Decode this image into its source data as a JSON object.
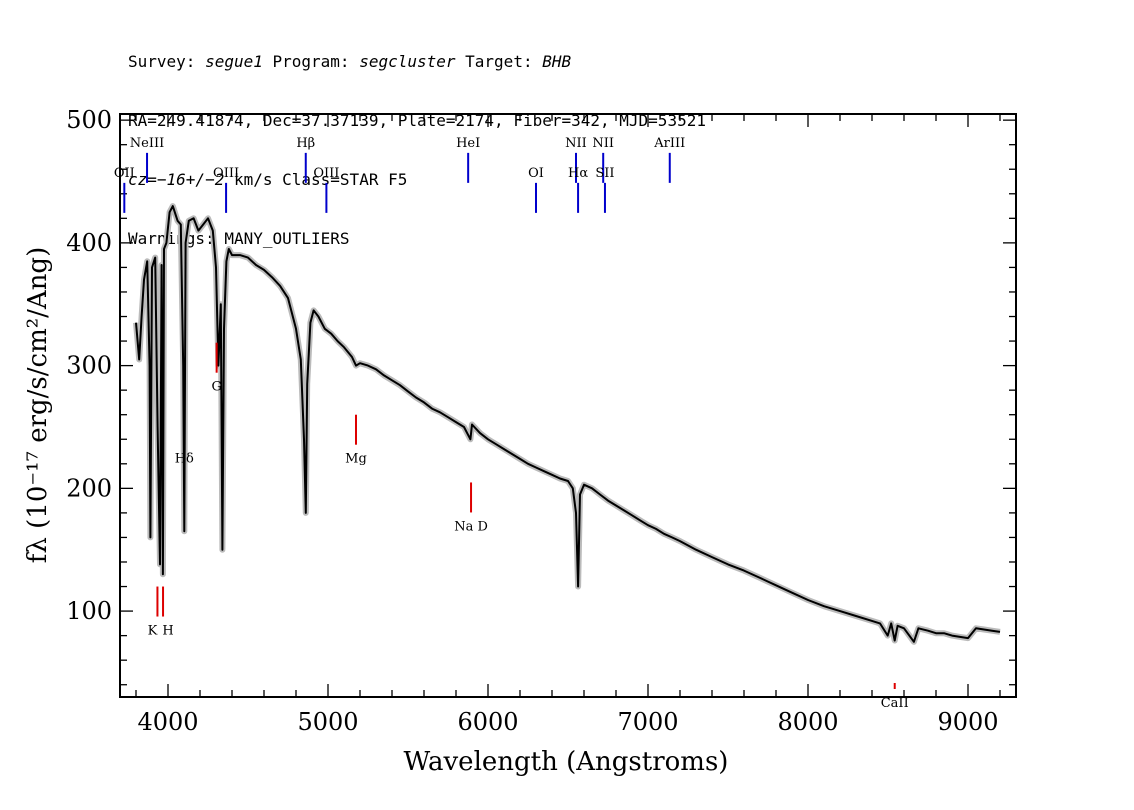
{
  "header": {
    "line1": {
      "survey_label": "Survey: ",
      "survey": "segue1",
      "program_label": " Program: ",
      "program": "segcluster",
      "target_label": " Target: ",
      "target": "BHB"
    },
    "line2": "RA=249.41874, Dec=37.37139, Plate=2174, Fiber=342, MJD=53521",
    "line3": {
      "cz": "cz=−16+/−2",
      "rest": " km/s Class=STAR F5"
    },
    "line4": "Warnings: MANY_OUTLIERS"
  },
  "chart_data": {
    "type": "line",
    "xlabel": "Wavelength (Angstroms)",
    "ylabel": "fλ (10⁻¹⁷ erg/s/cm²/Ang)",
    "xlim": [
      3700,
      9300
    ],
    "ylim": [
      30,
      505
    ],
    "x_ticks": [
      4000,
      5000,
      6000,
      7000,
      8000,
      9000
    ],
    "y_ticks": [
      100,
      200,
      300,
      400,
      500
    ],
    "colors": {
      "spectrum": "#000000",
      "error_band": "#bbbbbb",
      "emission": "#0000cc",
      "absorption": "#dd0000"
    },
    "series": [
      {
        "x": [
          3800,
          3820,
          3835,
          3850,
          3870,
          3885,
          3890,
          3900,
          3920,
          3935,
          3950,
          3960,
          3968,
          3975,
          3990,
          4010,
          4030,
          4060,
          4080,
          4095,
          4102,
          4110,
          4130,
          4160,
          4190,
          4220,
          4250,
          4280,
          4300,
          4315,
          4330,
          4340,
          4350,
          4365,
          4380,
          4400,
          4450,
          4500,
          4550,
          4600,
          4650,
          4700,
          4750,
          4800,
          4830,
          4850,
          4861,
          4870,
          4890,
          4910,
          4940,
          4980,
          5020,
          5060,
          5100,
          5150,
          5175,
          5200,
          5250,
          5300,
          5350,
          5400,
          5450,
          5500,
          5550,
          5600,
          5650,
          5700,
          5750,
          5800,
          5850,
          5890,
          5900,
          5950,
          6000,
          6050,
          6100,
          6150,
          6200,
          6250,
          6300,
          6350,
          6400,
          6450,
          6500,
          6530,
          6550,
          6563,
          6575,
          6600,
          6650,
          6700,
          6750,
          6800,
          6850,
          6900,
          6950,
          7000,
          7050,
          7100,
          7150,
          7200,
          7300,
          7400,
          7500,
          7600,
          7700,
          7750,
          7800,
          7900,
          8000,
          8100,
          8200,
          8300,
          8400,
          8450,
          8498,
          8520,
          8542,
          8560,
          8600,
          8662,
          8690,
          8750,
          8800,
          8850,
          8900,
          8950,
          9000,
          9050,
          9100,
          9150,
          9200
        ],
        "y": [
          335,
          305,
          340,
          370,
          385,
          300,
          160,
          380,
          388,
          250,
          138,
          382,
          130,
          395,
          400,
          425,
          430,
          418,
          415,
          300,
          165,
          400,
          418,
          420,
          410,
          415,
          420,
          410,
          380,
          300,
          350,
          150,
          330,
          385,
          395,
          390,
          390,
          388,
          382,
          378,
          372,
          365,
          355,
          330,
          305,
          240,
          180,
          285,
          335,
          345,
          340,
          330,
          326,
          320,
          315,
          307,
          300,
          302,
          300,
          297,
          292,
          288,
          284,
          279,
          274,
          270,
          265,
          262,
          258,
          254,
          250,
          240,
          252,
          245,
          240,
          236,
          232,
          228,
          224,
          220,
          217,
          214,
          211,
          208,
          206,
          200,
          180,
          120,
          195,
          203,
          200,
          195,
          190,
          186,
          182,
          178,
          174,
          170,
          167,
          163,
          160,
          157,
          150,
          144,
          138,
          133,
          127,
          124,
          121,
          115,
          109,
          104,
          100,
          96,
          92,
          90,
          80,
          90,
          76,
          88,
          86,
          75,
          86,
          84,
          82,
          82,
          80,
          79,
          78,
          86,
          85,
          84,
          83
        ]
      }
    ],
    "emission_lines": [
      {
        "label": "OII",
        "x": 3727
      },
      {
        "label": "NeIII",
        "x": 3869
      },
      {
        "label": "OIII",
        "x": 4363
      },
      {
        "label": "Hβ",
        "x": 4861
      },
      {
        "label": "OIII",
        "x": 4990
      },
      {
        "label": "HeI",
        "x": 5876
      },
      {
        "label": "OI",
        "x": 6300
      },
      {
        "label": "NII",
        "x": 6550
      },
      {
        "label": "Hα",
        "x": 6563
      },
      {
        "label": "NII",
        "x": 6720
      },
      {
        "label": "SII",
        "x": 6731
      },
      {
        "label": "ArIII",
        "x": 7136
      }
    ],
    "absorption_lines": [
      {
        "label": "Hδ",
        "x": 4102
      },
      {
        "label": "K",
        "x": 3934
      },
      {
        "label": "H",
        "x": 3969
      },
      {
        "label": "G",
        "x": 4304
      },
      {
        "label": "Mg",
        "x": 5175
      },
      {
        "label": "Na  D",
        "x": 5894
      },
      {
        "label": "CaII",
        "x": 8542
      }
    ]
  }
}
